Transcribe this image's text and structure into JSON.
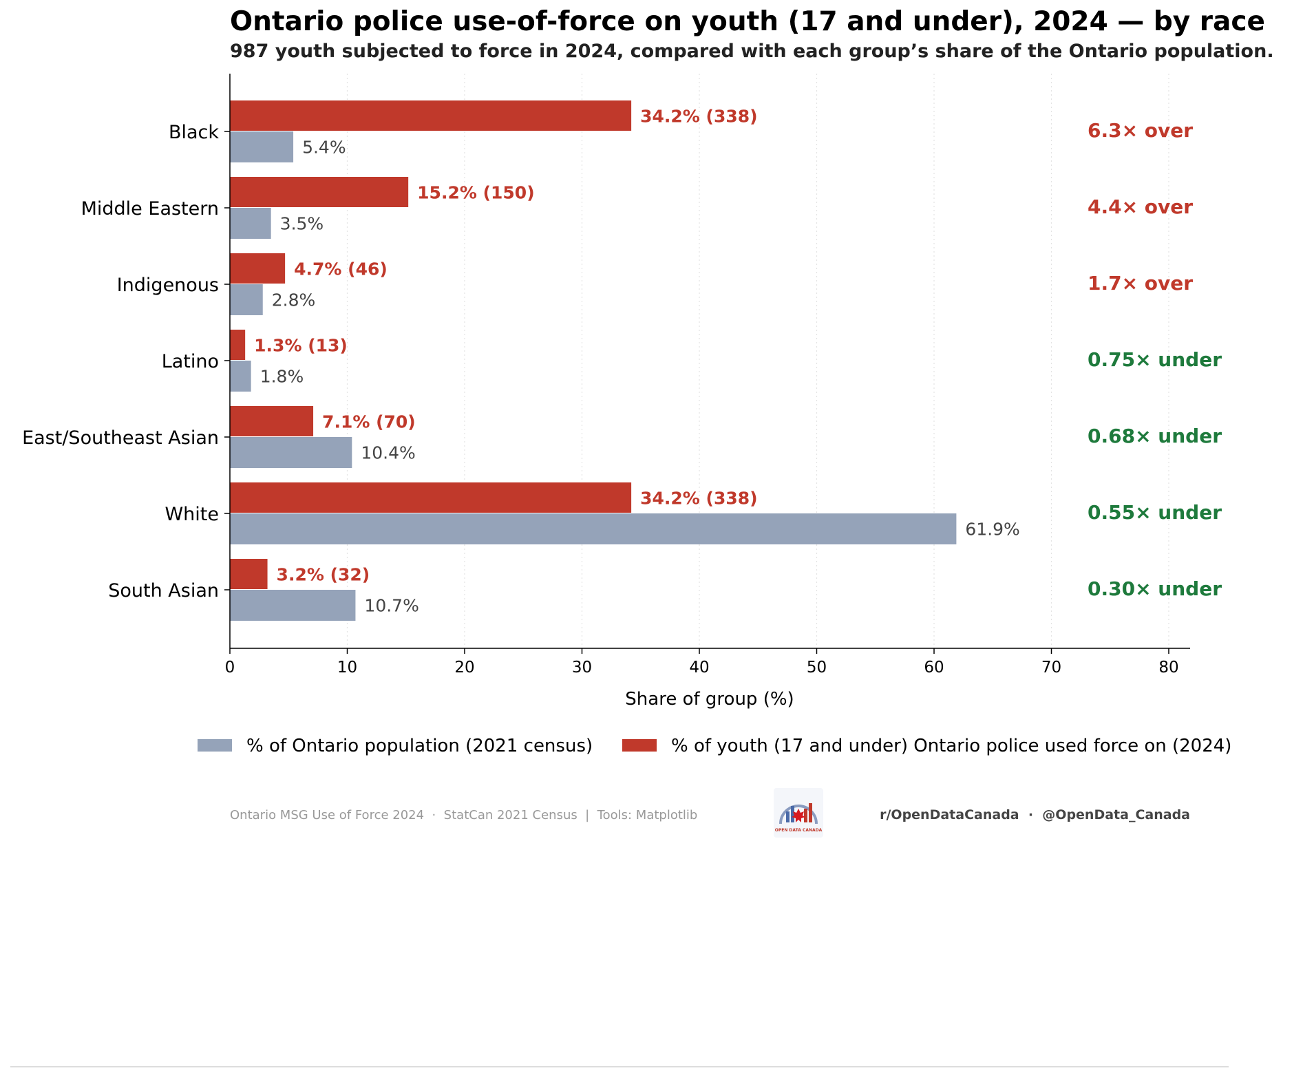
{
  "colors": {
    "youth": "#c0392b",
    "population": "#95a3b9",
    "over": "#c0392b",
    "under": "#1e7a3c"
  },
  "chart_data": {
    "type": "bar",
    "orientation": "horizontal",
    "title": "Ontario police use-of-force on youth (17 and under), 2024 — by race",
    "subtitle": "987 youth subjected to force in 2024, compared with each group’s share of the Ontario population.",
    "xlabel": "Share of group (%)",
    "xlim": [
      0,
      82
    ],
    "xticks": [
      0,
      10,
      20,
      30,
      40,
      50,
      60,
      70,
      80
    ],
    "grid": "x-dotted",
    "legend_placement": "bottom",
    "categories": [
      "Black",
      "Middle Eastern",
      "Indigenous",
      "Latino",
      "East/Southeast Asian",
      "White",
      "South Asian"
    ],
    "series": [
      {
        "name": "% of youth (17 and under) Ontario police used force on (2024)",
        "key": "youth",
        "values": [
          34.2,
          15.2,
          4.7,
          1.3,
          7.1,
          34.2,
          3.2
        ],
        "labels": [
          "34.2%  (338)",
          "15.2%  (150)",
          "4.7%  (46)",
          "1.3%  (13)",
          "7.1%  (70)",
          "34.2%  (338)",
          "3.2%  (32)"
        ]
      },
      {
        "name": "% of Ontario population (2021 census)",
        "key": "population",
        "values": [
          5.4,
          3.5,
          2.8,
          1.8,
          10.4,
          61.9,
          10.7
        ],
        "labels": [
          "5.4%",
          "3.5%",
          "2.8%",
          "1.8%",
          "10.4%",
          "61.9%",
          "10.7%"
        ]
      }
    ],
    "ratios": [
      {
        "text": "6.3× over",
        "kind": "over"
      },
      {
        "text": "4.4× over",
        "kind": "over"
      },
      {
        "text": "1.7× over",
        "kind": "over"
      },
      {
        "text": "0.75× under",
        "kind": "under"
      },
      {
        "text": "0.68× under",
        "kind": "under"
      },
      {
        "text": "0.55× under",
        "kind": "under"
      },
      {
        "text": "0.30× under",
        "kind": "under"
      }
    ],
    "legend": [
      {
        "key": "population",
        "label": "% of Ontario population (2021 census)"
      },
      {
        "key": "youth",
        "label": "% of youth (17 and under) Ontario police used force on (2024)"
      }
    ]
  },
  "footer": {
    "sources": "Ontario MSG Use of Force 2024  ·  StatCan 2021 Census  |  Tools: Matplotlib",
    "logo_text": "OPEN DATA CANADA",
    "handles": "r/OpenDataCanada  ·  @OpenData_Canada"
  }
}
